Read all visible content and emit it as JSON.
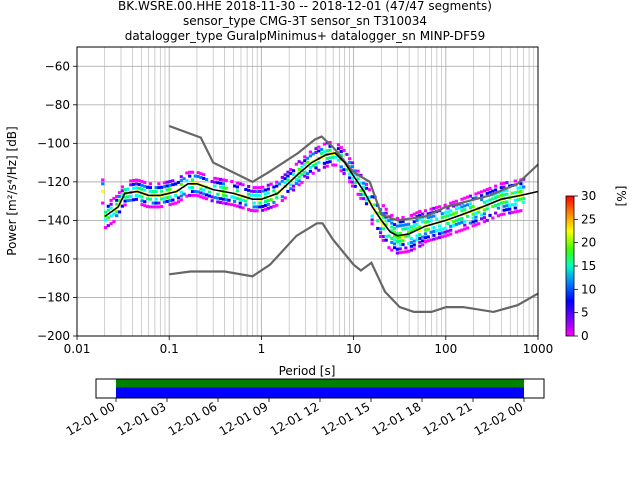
{
  "chart_data": {
    "type": "line",
    "title_lines": [
      "BK.WSRE.00.HHE   2018-11-30 -- 2018-12-01  (47/47 segments)",
      "sensor_type CMG-3T sensor_sn T310034",
      "datalogger_type GuralpMinimus+ datalogger_sn MINP-DF59"
    ],
    "xlabel": "Period [s]",
    "ylabel": "Power [m²/s⁴/Hz] [dB]",
    "x_scale": "log",
    "xlim": [
      0.01,
      1000
    ],
    "ylim": [
      -200,
      -50
    ],
    "x_ticks": [
      {
        "v": 0.01,
        "label": "0.01"
      },
      {
        "v": 0.1,
        "label": "0.1"
      },
      {
        "v": 1,
        "label": "1"
      },
      {
        "v": 10,
        "label": "10"
      },
      {
        "v": 100,
        "label": "100"
      },
      {
        "v": 1000,
        "label": "1000"
      }
    ],
    "y_ticks": [
      {
        "v": -60,
        "label": "−60"
      },
      {
        "v": -80,
        "label": "−80"
      },
      {
        "v": -100,
        "label": "−100"
      },
      {
        "v": -120,
        "label": "−120"
      },
      {
        "v": -140,
        "label": "−140"
      },
      {
        "v": -160,
        "label": "−160"
      },
      {
        "v": -180,
        "label": "−180"
      },
      {
        "v": -200,
        "label": "−200"
      }
    ],
    "grid": true,
    "series": [
      {
        "color": "#666666",
        "points": [
          [
            0.1,
            -91
          ],
          [
            0.22,
            -97
          ],
          [
            0.3,
            -110
          ],
          [
            0.8,
            -120
          ],
          [
            1.2,
            -115
          ],
          [
            2.5,
            -105
          ],
          [
            3.8,
            -98
          ],
          [
            4.5,
            -96.5
          ],
          [
            6,
            -102
          ],
          [
            10,
            -115
          ],
          [
            15,
            -120
          ],
          [
            20,
            -137
          ],
          [
            30,
            -140
          ],
          [
            60,
            -138
          ],
          [
            100,
            -133
          ],
          [
            300,
            -127
          ],
          [
            600,
            -121
          ],
          [
            1000,
            -111
          ]
        ]
      },
      {
        "color": "#666666",
        "points": [
          [
            0.1,
            -168
          ],
          [
            0.17,
            -166.5
          ],
          [
            0.4,
            -166.5
          ],
          [
            0.8,
            -169
          ],
          [
            1.24,
            -163
          ],
          [
            2.4,
            -148
          ],
          [
            4,
            -141.5
          ],
          [
            4.6,
            -141.5
          ],
          [
            6,
            -150
          ],
          [
            10,
            -163
          ],
          [
            12,
            -166
          ],
          [
            15.6,
            -162
          ],
          [
            21.9,
            -177
          ],
          [
            31.6,
            -185
          ],
          [
            45,
            -187.5
          ],
          [
            70,
            -187.5
          ],
          [
            101,
            -185
          ],
          [
            154,
            -185
          ],
          [
            328,
            -187.5
          ],
          [
            600,
            -184
          ],
          [
            1000,
            -178
          ]
        ]
      },
      {
        "color": "#000000",
        "points": [
          [
            0.02,
            -138
          ],
          [
            0.028,
            -133
          ],
          [
            0.033,
            -126
          ],
          [
            0.045,
            -125
          ],
          [
            0.06,
            -127
          ],
          [
            0.08,
            -127
          ],
          [
            0.12,
            -125
          ],
          [
            0.16,
            -121
          ],
          [
            0.2,
            -121
          ],
          [
            0.3,
            -124
          ],
          [
            0.5,
            -126
          ],
          [
            0.8,
            -129
          ],
          [
            1,
            -129
          ],
          [
            1.5,
            -126
          ],
          [
            2.5,
            -116
          ],
          [
            3.5,
            -110
          ],
          [
            5,
            -106
          ],
          [
            6.3,
            -105
          ],
          [
            8,
            -110
          ],
          [
            10,
            -117
          ],
          [
            13,
            -125
          ],
          [
            16,
            -133
          ],
          [
            20,
            -140
          ],
          [
            25,
            -146
          ],
          [
            30,
            -148
          ],
          [
            40,
            -147
          ],
          [
            60,
            -143
          ],
          [
            100,
            -140
          ],
          [
            150,
            -137
          ],
          [
            250,
            -133
          ],
          [
            400,
            -129
          ],
          [
            650,
            -127
          ],
          [
            1000,
            -125
          ]
        ]
      }
    ],
    "colorbar": {
      "label": "[%]",
      "range": [
        0,
        30
      ],
      "ticks": [
        "0",
        "5",
        "10",
        "15",
        "20",
        "25",
        "30"
      ]
    },
    "timeline": {
      "start": "2018-12-01 00:00",
      "end": "2018-12-02 00:00",
      "tick_labels": [
        "12-01 00",
        "12-01 03",
        "12-01 06",
        "12-01 09",
        "12-01 12",
        "12-01 15",
        "12-01 18",
        "12-01 21",
        "12-02 00"
      ],
      "bar_colors": [
        "#008000",
        "#0000ff"
      ]
    }
  }
}
